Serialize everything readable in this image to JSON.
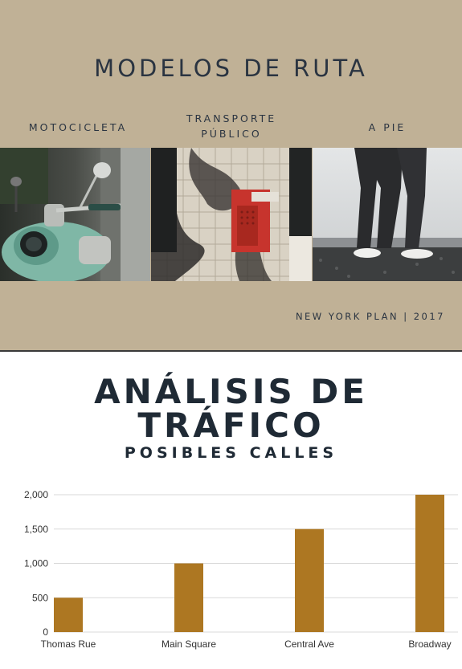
{
  "header": {
    "title": "MODELOS DE RUTA",
    "categories": [
      {
        "label": "MOTOCICLETA"
      },
      {
        "label_line1": "TRANSPORTE",
        "label_line2": "PÚBLICO"
      },
      {
        "label": "A PIE"
      }
    ],
    "footer": "NEW YORK PLAN | 2017"
  },
  "colors": {
    "panel": "#c0b196",
    "title_text": "#1f2a35",
    "bar": "#ad7722",
    "grid": "#d9d9d9"
  },
  "chart": {
    "title_line1": "ANÁLISIS DE",
    "title_line2": "TRÁFICO",
    "subtitle": "POSIBLES CALLES"
  },
  "chart_data": {
    "type": "bar",
    "categories": [
      "Thomas Rue",
      "Main Square",
      "Central Ave",
      "Broadway"
    ],
    "values": [
      500,
      1000,
      1500,
      2000
    ],
    "y_ticks": [
      "0",
      "500",
      "1,000",
      "1,500",
      "2,000"
    ],
    "ylim": [
      0,
      2000
    ],
    "grid": true,
    "legend": false
  }
}
